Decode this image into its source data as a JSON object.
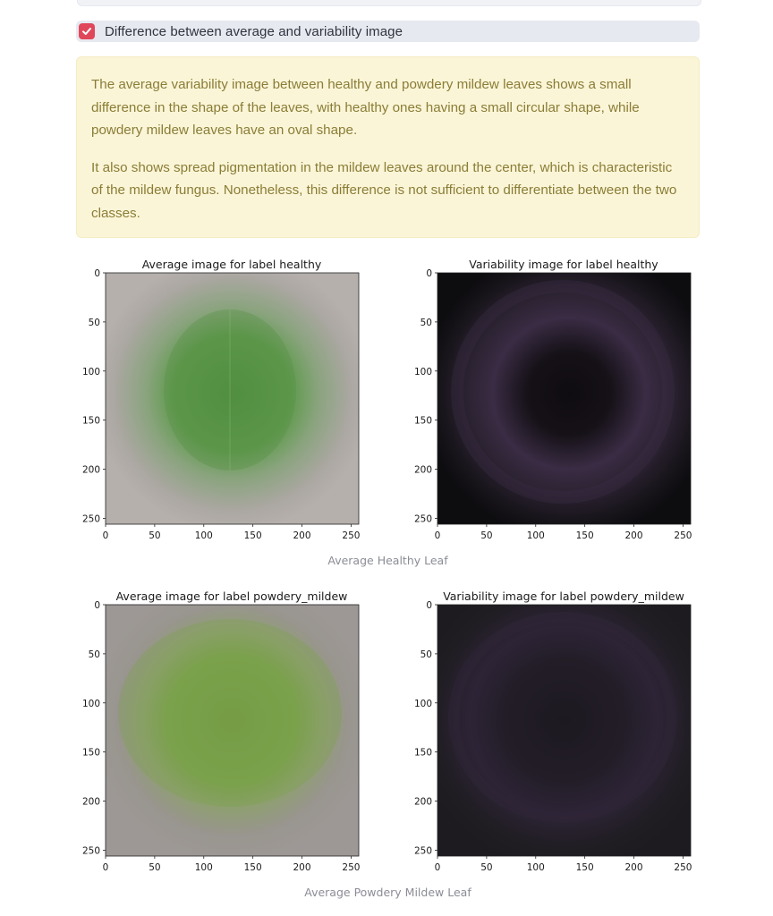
{
  "checkbox": {
    "label": "Difference between average and variability image",
    "checked": true,
    "color": "#e0475b"
  },
  "info": {
    "paragraphs": [
      "The average variability image between healthy and powdery mildew leaves shows a small difference in the shape of the leaves, with healthy ones having a small circular shape, while powdery mildew leaves have an oval shape.",
      "It also shows spread pigmentation in the mildew leaves around the center, which is characteristic of the mildew fungus. Nonetheless, this difference is not sufficient to differentiate between the two classes."
    ]
  },
  "figures": [
    {
      "caption": "Average Healthy Leaf",
      "panels": [
        {
          "title": "Average image for label healthy",
          "kind": "average-healthy",
          "bg_color": "#b3adaa",
          "leaf_color": "#5f9a4c",
          "ticks": [
            "0",
            "50",
            "100",
            "150",
            "200",
            "250"
          ]
        },
        {
          "title": "Variability image for label healthy",
          "kind": "variability-healthy",
          "bg_color": "#0e0d10",
          "leaf_color": "#3a2b44",
          "ticks": [
            "0",
            "50",
            "100",
            "150",
            "200",
            "250"
          ]
        }
      ]
    },
    {
      "caption": "Average Powdery Mildew Leaf",
      "panels": [
        {
          "title": "Average image for label powdery_mildew",
          "kind": "average-mildew",
          "bg_color": "#9b9693",
          "leaf_color": "#7aa14c",
          "ticks": [
            "0",
            "50",
            "100",
            "150",
            "200",
            "250"
          ]
        },
        {
          "title": "Variability image for label powdery_mildew",
          "kind": "variability-mildew",
          "bg_color": "#1f1c22",
          "leaf_color": "#2d2436",
          "ticks": [
            "0",
            "50",
            "100",
            "150",
            "200",
            "250"
          ]
        }
      ]
    }
  ]
}
